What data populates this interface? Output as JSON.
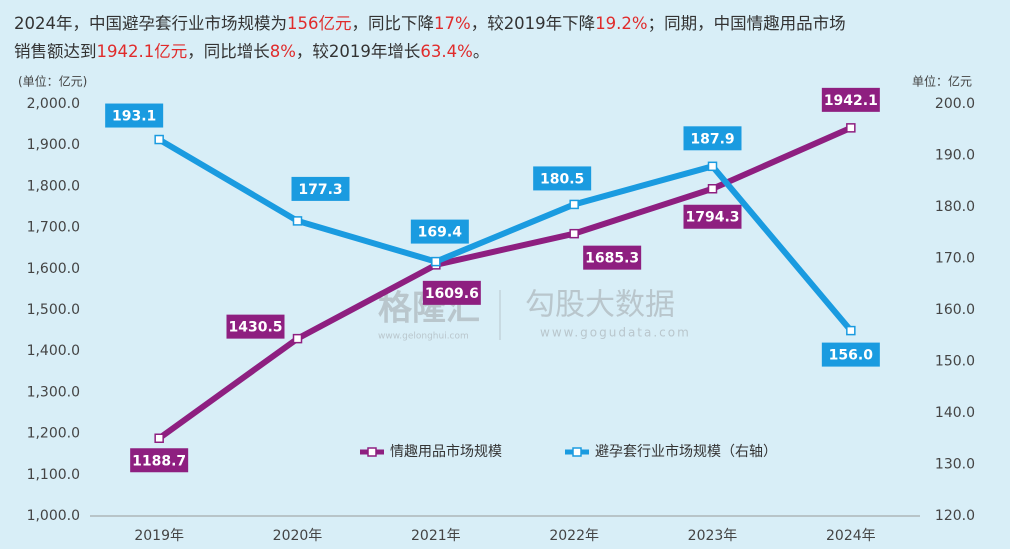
{
  "chart_data": {
    "type": "line",
    "title_lines": [
      [
        {
          "text": "2024年，中国避孕套行业市场规模为",
          "color": "#333333"
        },
        {
          "text": "156亿元",
          "color": "#e02b2b"
        },
        {
          "text": "，同比下降",
          "color": "#333333"
        },
        {
          "text": "17%",
          "color": "#e02b2b"
        },
        {
          "text": "，较2019年下降",
          "color": "#333333"
        },
        {
          "text": "19.2%",
          "color": "#e02b2b"
        },
        {
          "text": "；同期，中国情趣用品市场",
          "color": "#333333"
        }
      ],
      [
        {
          "text": "销售额达到",
          "color": "#333333"
        },
        {
          "text": "1942.1亿元",
          "color": "#e02b2b"
        },
        {
          "text": "，同比增长",
          "color": "#333333"
        },
        {
          "text": "8%",
          "color": "#e02b2b"
        },
        {
          "text": "，较2019年增长",
          "color": "#333333"
        },
        {
          "text": "63.4%",
          "color": "#e02b2b"
        },
        {
          "text": "。",
          "color": "#333333"
        }
      ]
    ],
    "y_unit": "(单位：亿元)",
    "y2_unit": "单位：亿元",
    "categories": [
      "2019年",
      "2020年",
      "2021年",
      "2022年",
      "2023年",
      "2024年"
    ],
    "series": [
      {
        "name": "情趣用品市场规模",
        "color": "#8e1f80",
        "values": [
          1188.7,
          1430.5,
          1609.6,
          1685.3,
          1794.3,
          1942.1
        ]
      },
      {
        "name": "避孕套行业市场规模（右轴）",
        "color": "#1a9be0",
        "axis": "y2",
        "values": [
          193.1,
          177.3,
          169.4,
          180.5,
          187.9,
          156.0
        ],
        "value_labels": [
          "193.1",
          "177.3",
          "169.4",
          "180.5",
          "187.9",
          "156.0"
        ]
      }
    ],
    "ylim": [
      1000,
      2000
    ],
    "yticks": [
      {
        "value": 1000,
        "label": "1,000.0"
      },
      {
        "value": 1100,
        "label": "1,100.0"
      },
      {
        "value": 1200,
        "label": "1,200.0"
      },
      {
        "value": 1300,
        "label": "1,300.0"
      },
      {
        "value": 1400,
        "label": "1,400.0"
      },
      {
        "value": 1500,
        "label": "1,500.0"
      },
      {
        "value": 1600,
        "label": "1,600.0"
      },
      {
        "value": 1700,
        "label": "1,700.0"
      },
      {
        "value": 1800,
        "label": "1,800.0"
      },
      {
        "value": 1900,
        "label": "1,900.0"
      },
      {
        "value": 2000,
        "label": "2,000.0"
      }
    ],
    "y2lim": [
      120,
      200
    ],
    "y2ticks": [
      {
        "value": 120,
        "label": "120.0"
      },
      {
        "value": 130,
        "label": "130.0"
      },
      {
        "value": 140,
        "label": "140.0"
      },
      {
        "value": 150,
        "label": "150.0"
      },
      {
        "value": 160,
        "label": "160.0"
      },
      {
        "value": 170,
        "label": "170.0"
      },
      {
        "value": 180,
        "label": "180.0"
      },
      {
        "value": 190,
        "label": "190.0"
      },
      {
        "value": 200,
        "label": "200.0"
      }
    ],
    "grid": false,
    "watermarks": [
      "格隆汇",
      "www.gelonghui.com",
      "勾股大数据",
      "www.gogudata.com"
    ]
  }
}
